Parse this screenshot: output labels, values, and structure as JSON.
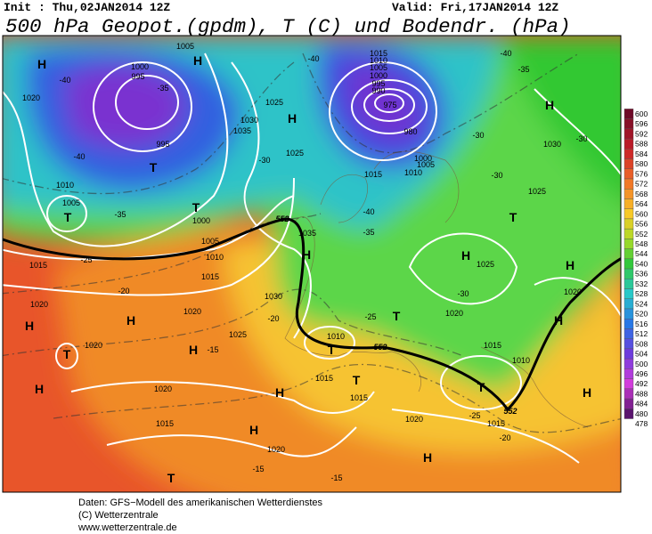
{
  "header": {
    "init": "Init : Thu,02JAN2014 12Z",
    "valid": "Valid: Fri,17JAN2014 12Z",
    "title": "500 hPa Geopot.(gpdm), T (C) und Bodendr. (hPa)"
  },
  "legend": {
    "labels": [
      600,
      596,
      592,
      588,
      584,
      580,
      576,
      572,
      568,
      564,
      560,
      556,
      552,
      548,
      544,
      540,
      536,
      532,
      528,
      524,
      520,
      516,
      512,
      508,
      504,
      500,
      496,
      492,
      488,
      484,
      480,
      478
    ]
  },
  "map_labels": [
    "H",
    "1020",
    "-40",
    "-40",
    "1000",
    "995",
    "-35",
    "H",
    "1005",
    "T",
    "995",
    "1030",
    "1035",
    "1025",
    "H",
    "-30",
    "1025",
    "1010",
    "1005",
    "T",
    "-35",
    "T",
    "1000",
    "1005",
    "1010",
    "-25",
    "1015",
    "H",
    "1035",
    "1015",
    "1020",
    "-20",
    "H",
    "H",
    "1020",
    "1030",
    "-20",
    "1025",
    "T",
    "1020",
    "H",
    "-15",
    "H",
    "1020",
    "1010",
    "T",
    "1015",
    "T",
    "1015",
    "H",
    "1015",
    "H",
    "1020",
    "T",
    "-15",
    "1020",
    "H",
    "-15",
    "-25",
    "T",
    "-40",
    "1015",
    "1010",
    "1005",
    "1000",
    "995",
    "990",
    "975",
    "980",
    "1000",
    "1005",
    "1015",
    "1010",
    "-40",
    "-35",
    "-30",
    "-35",
    "-40",
    "H",
    "1030",
    "-30",
    "-30",
    "1025",
    "T",
    "H",
    "1025",
    "-30",
    "1020",
    "H",
    "1020",
    "H",
    "1015",
    "1010",
    "T",
    "H",
    "-25",
    "1015",
    "-20",
    "552",
    "552",
    "552"
  ],
  "footer": {
    "source": "Daten: GFS−Modell des amerikanischen Wetterdienstes",
    "copyright": "(C) Wetterzentrale",
    "url": "www.wetterzentrale.de"
  }
}
